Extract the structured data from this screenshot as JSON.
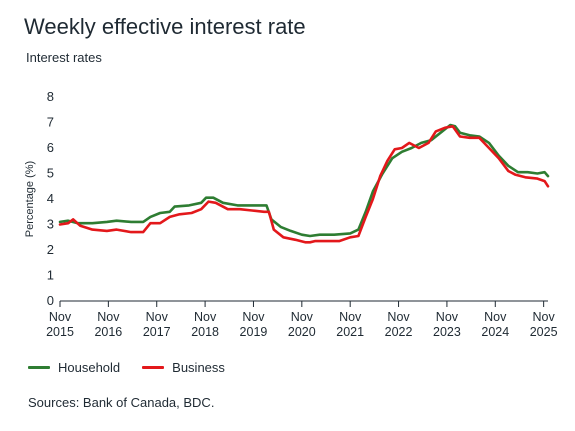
{
  "title": "Weekly effective interest rate",
  "subtitle": "Interest rates",
  "source": "Sources: Bank of Canada, BDC.",
  "colors": {
    "household": "#2e7d32",
    "business": "#e3181b",
    "axis": "#1f2a33"
  },
  "chart_data": {
    "type": "line",
    "title": "Weekly effective interest rate",
    "subtitle": "Interest rates",
    "xlabel": "",
    "ylabel": "Percentage (%)",
    "ylim": [
      0,
      8
    ],
    "yticks": [
      0,
      1,
      2,
      3,
      4,
      5,
      6,
      7,
      8
    ],
    "xlim": [
      2015.83,
      2025.92
    ],
    "xticks": [
      {
        "x": 2015.83,
        "label1": "Nov",
        "label2": "2015"
      },
      {
        "x": 2016.83,
        "label1": "Nov",
        "label2": "2016"
      },
      {
        "x": 2017.83,
        "label1": "Nov",
        "label2": "2017"
      },
      {
        "x": 2018.83,
        "label1": "Nov",
        "label2": "2018"
      },
      {
        "x": 2019.83,
        "label1": "Nov",
        "label2": "2019"
      },
      {
        "x": 2020.83,
        "label1": "Nov",
        "label2": "2020"
      },
      {
        "x": 2021.83,
        "label1": "Nov",
        "label2": "2021"
      },
      {
        "x": 2022.83,
        "label1": "Nov",
        "label2": "2022"
      },
      {
        "x": 2023.83,
        "label1": "Nov",
        "label2": "2023"
      },
      {
        "x": 2024.83,
        "label1": "Nov",
        "label2": "2024"
      },
      {
        "x": 2025.83,
        "label1": "Nov",
        "label2": "2025"
      }
    ],
    "grid": false,
    "legend_position": "bottom-left",
    "series": [
      {
        "name": "Household",
        "color": "#2e7d32",
        "points": [
          [
            2015.83,
            3.1
          ],
          [
            2016.0,
            3.15
          ],
          [
            2016.2,
            3.05
          ],
          [
            2016.5,
            3.05
          ],
          [
            2016.8,
            3.1
          ],
          [
            2017.0,
            3.15
          ],
          [
            2017.3,
            3.1
          ],
          [
            2017.55,
            3.1
          ],
          [
            2017.7,
            3.3
          ],
          [
            2017.9,
            3.45
          ],
          [
            2018.1,
            3.5
          ],
          [
            2018.2,
            3.7
          ],
          [
            2018.5,
            3.75
          ],
          [
            2018.75,
            3.85
          ],
          [
            2018.85,
            4.05
          ],
          [
            2019.0,
            4.05
          ],
          [
            2019.2,
            3.85
          ],
          [
            2019.5,
            3.75
          ],
          [
            2019.75,
            3.75
          ],
          [
            2020.0,
            3.75
          ],
          [
            2020.1,
            3.75
          ],
          [
            2020.2,
            3.2
          ],
          [
            2020.4,
            2.9
          ],
          [
            2020.6,
            2.75
          ],
          [
            2020.83,
            2.6
          ],
          [
            2021.0,
            2.55
          ],
          [
            2021.2,
            2.6
          ],
          [
            2021.5,
            2.6
          ],
          [
            2021.83,
            2.65
          ],
          [
            2022.0,
            2.8
          ],
          [
            2022.15,
            3.5
          ],
          [
            2022.3,
            4.3
          ],
          [
            2022.5,
            5.0
          ],
          [
            2022.7,
            5.6
          ],
          [
            2022.9,
            5.85
          ],
          [
            2023.1,
            6.0
          ],
          [
            2023.3,
            6.2
          ],
          [
            2023.5,
            6.3
          ],
          [
            2023.7,
            6.6
          ],
          [
            2023.9,
            6.9
          ],
          [
            2024.0,
            6.85
          ],
          [
            2024.1,
            6.6
          ],
          [
            2024.3,
            6.5
          ],
          [
            2024.5,
            6.45
          ],
          [
            2024.7,
            6.2
          ],
          [
            2024.9,
            5.7
          ],
          [
            2025.1,
            5.3
          ],
          [
            2025.3,
            5.05
          ],
          [
            2025.5,
            5.05
          ],
          [
            2025.7,
            5.0
          ],
          [
            2025.85,
            5.05
          ],
          [
            2025.92,
            4.9
          ]
        ]
      },
      {
        "name": "Business",
        "color": "#e3181b",
        "points": [
          [
            2015.83,
            3.0
          ],
          [
            2016.0,
            3.05
          ],
          [
            2016.1,
            3.2
          ],
          [
            2016.25,
            2.95
          ],
          [
            2016.5,
            2.8
          ],
          [
            2016.8,
            2.75
          ],
          [
            2017.0,
            2.8
          ],
          [
            2017.3,
            2.7
          ],
          [
            2017.55,
            2.7
          ],
          [
            2017.7,
            3.05
          ],
          [
            2017.9,
            3.05
          ],
          [
            2018.1,
            3.3
          ],
          [
            2018.3,
            3.4
          ],
          [
            2018.55,
            3.45
          ],
          [
            2018.75,
            3.6
          ],
          [
            2018.9,
            3.9
          ],
          [
            2019.05,
            3.85
          ],
          [
            2019.3,
            3.6
          ],
          [
            2019.55,
            3.6
          ],
          [
            2019.8,
            3.55
          ],
          [
            2020.05,
            3.5
          ],
          [
            2020.15,
            3.5
          ],
          [
            2020.25,
            2.8
          ],
          [
            2020.45,
            2.5
          ],
          [
            2020.7,
            2.4
          ],
          [
            2020.9,
            2.3
          ],
          [
            2021.0,
            2.3
          ],
          [
            2021.1,
            2.35
          ],
          [
            2021.4,
            2.35
          ],
          [
            2021.6,
            2.35
          ],
          [
            2021.83,
            2.5
          ],
          [
            2022.0,
            2.55
          ],
          [
            2022.15,
            3.3
          ],
          [
            2022.3,
            4.0
          ],
          [
            2022.45,
            4.9
          ],
          [
            2022.6,
            5.5
          ],
          [
            2022.75,
            5.95
          ],
          [
            2022.9,
            6.0
          ],
          [
            2023.05,
            6.2
          ],
          [
            2023.25,
            6.0
          ],
          [
            2023.45,
            6.2
          ],
          [
            2023.6,
            6.65
          ],
          [
            2023.8,
            6.8
          ],
          [
            2023.95,
            6.85
          ],
          [
            2024.1,
            6.45
          ],
          [
            2024.3,
            6.4
          ],
          [
            2024.5,
            6.4
          ],
          [
            2024.7,
            6.0
          ],
          [
            2024.9,
            5.6
          ],
          [
            2025.1,
            5.1
          ],
          [
            2025.25,
            4.95
          ],
          [
            2025.45,
            4.85
          ],
          [
            2025.7,
            4.8
          ],
          [
            2025.85,
            4.7
          ],
          [
            2025.92,
            4.5
          ]
        ]
      }
    ]
  }
}
